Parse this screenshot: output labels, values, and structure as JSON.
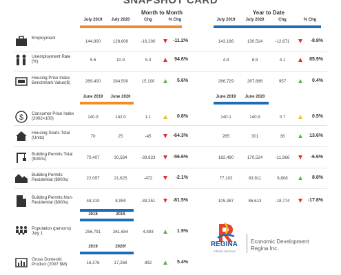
{
  "title": "SNAPSHOT CARD",
  "sections": {
    "mtm": "Month to Month",
    "ytd": "Year to Date"
  },
  "headers": {
    "mtm": [
      "July 2019",
      "July 2020",
      "Chg",
      "% Chg"
    ],
    "ytd": [
      "July 2019",
      "July 2020",
      "Chg",
      "% Chg"
    ],
    "june": [
      "June 2019",
      "June 2020"
    ],
    "ytd_june": [
      "June 2019",
      "June 2020"
    ],
    "years1": [
      "2018",
      "2019"
    ],
    "years2": [
      "2019",
      "2020f"
    ]
  },
  "rows": [
    {
      "label": "Employment",
      "icon": "briefcase-icon",
      "m": [
        "144,800",
        "128,600",
        "-16,200",
        "-11.2%"
      ],
      "mt": "down-red",
      "y": [
        "143,186",
        "130,514",
        "-12,671",
        "-8.8%"
      ],
      "yt": "down-red"
    },
    {
      "label": "Unemployment Rate (%)",
      "icon": "people-icon",
      "m": [
        "5.6",
        "10.9",
        "5.3",
        "94.6%"
      ],
      "mt": "up-red",
      "y": [
        "4.8",
        "8.9",
        "4.1",
        "85.9%"
      ],
      "yt": "up-red"
    },
    {
      "label": "Housing Price Index Benchmark Value($)",
      "icon": "price-tag-icon",
      "m": [
        "269,400",
        "284,500",
        "15,100",
        "5.6%"
      ],
      "mt": "up-green",
      "y": [
        "266,729",
        "267,686",
        "957",
        "0.4%"
      ],
      "yt": "up-green"
    },
    {
      "label": "Consumer Price Index (2002=100)",
      "icon": "dollar-coin-icon",
      "m": [
        "140.9",
        "142.0",
        "1.1",
        "0.8%"
      ],
      "mt": "up-yellow",
      "y": [
        "140.1",
        "140.9",
        "0.7",
        "0.5%"
      ],
      "yt": "up-yellow"
    },
    {
      "label": "Housing Starts Total (Units)",
      "icon": "house-icon",
      "m": [
        "70",
        "25",
        "-45",
        "-64.3%"
      ],
      "mt": "down-red",
      "y": [
        "265",
        "301",
        "36",
        "13.6%"
      ],
      "yt": "up-green"
    },
    {
      "label": "Building Permits Total ($000s)",
      "icon": "crane-icon",
      "m": [
        "70,407",
        "30,584",
        "-39,823",
        "-56.6%"
      ],
      "mt": "down-red",
      "y": [
        "182,490",
        "170,524",
        "-11,966",
        "-6.6%"
      ],
      "yt": "down-red"
    },
    {
      "label": "Building Permits Residential ($000s)",
      "icon": "residential-icon",
      "m": [
        "22,097",
        "21,625",
        "-472",
        "-2.1%"
      ],
      "mt": "down-red",
      "y": [
        "77,103",
        "83,911",
        "6,808",
        "8.8%"
      ],
      "yt": "up-green"
    },
    {
      "label": "Building Permits Non-Residential ($000s)",
      "icon": "office-building-icon",
      "m": [
        "48,310",
        "8,959",
        "-39,351",
        "-81.5%"
      ],
      "mt": "down-red",
      "y": [
        "105,387",
        "86,613",
        "-18,774",
        "-17.8%"
      ],
      "yt": "down-red"
    },
    {
      "label": "Population (persons) July 1",
      "icon": "population-icon",
      "m": [
        "256,791",
        "261,684",
        "4,893",
        "1.9%"
      ],
      "mt": "up-green",
      "y": null,
      "yt": null
    },
    {
      "label": "Gross Domestic Product (2007 $M)",
      "icon": "gdp-icon",
      "m": [
        "16,376",
        "17,268",
        "892",
        "5.4%"
      ],
      "mt": "up-green",
      "y": null,
      "yt": null
    }
  ],
  "logo": {
    "name": "REGINA",
    "tagline": "Infinite Horizons",
    "org": "Economic Development Regina Inc."
  },
  "colors": {
    "orange": "#f28c28",
    "blue": "#1b6db5",
    "red": "#e52f2f",
    "green": "#5cb34a",
    "yellow": "#f3c21a"
  }
}
